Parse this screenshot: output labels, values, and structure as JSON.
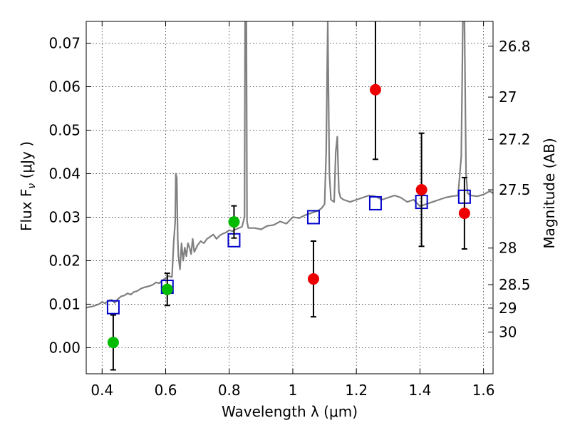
{
  "chart_data": {
    "type": "scatter",
    "xlabel": "Wavelength  λ (μm)",
    "ylabel": "Flux  F",
    "ylabel_sub": "ν",
    "ylabel_unit": "  (μJy )",
    "y2label": "Magnitude (AB)",
    "xlim": [
      0.35,
      1.63
    ],
    "ylim": [
      -0.006,
      0.075
    ],
    "xticks": [
      0.4,
      0.6,
      0.8,
      1.0,
      1.2,
      1.4,
      1.6
    ],
    "xtick_labels": [
      "0.4",
      "0.6",
      "0.8",
      "1",
      "1.2",
      "1.4",
      "1.6"
    ],
    "yticks": [
      0.0,
      0.01,
      0.02,
      0.03,
      0.04,
      0.05,
      0.06,
      0.07
    ],
    "ytick_labels": [
      "0.00",
      "0.01",
      "0.02",
      "0.03",
      "0.04",
      "0.05",
      "0.06",
      "0.07"
    ],
    "y2ticks": [
      {
        "label": "26.8",
        "flux": 0.0693
      },
      {
        "label": "27",
        "flux": 0.0576
      },
      {
        "label": "27.2",
        "flux": 0.0479
      },
      {
        "label": "27.5",
        "flux": 0.0363
      },
      {
        "label": "28",
        "flux": 0.0229
      },
      {
        "label": "28.5",
        "flux": 0.0145
      },
      {
        "label": "29",
        "flux": 0.0091
      },
      {
        "label": "30",
        "flux": 0.0036
      }
    ],
    "grid": true,
    "series": [
      {
        "kind": "spectrum",
        "color": "#808080",
        "x": [
          0.35,
          0.37,
          0.39,
          0.4,
          0.41,
          0.42,
          0.43,
          0.44,
          0.45,
          0.46,
          0.47,
          0.48,
          0.49,
          0.5,
          0.51,
          0.52,
          0.53,
          0.54,
          0.55,
          0.56,
          0.57,
          0.58,
          0.59,
          0.6,
          0.61,
          0.62,
          0.625,
          0.63,
          0.632,
          0.635,
          0.638,
          0.64,
          0.645,
          0.65,
          0.655,
          0.66,
          0.665,
          0.67,
          0.675,
          0.68,
          0.685,
          0.69,
          0.7,
          0.71,
          0.72,
          0.73,
          0.74,
          0.75,
          0.76,
          0.77,
          0.78,
          0.79,
          0.8,
          0.81,
          0.82,
          0.83,
          0.84,
          0.848,
          0.85,
          0.852,
          0.854,
          0.856,
          0.86,
          0.88,
          0.9,
          0.92,
          0.94,
          0.96,
          0.98,
          1.0,
          1.02,
          1.04,
          1.06,
          1.08,
          1.09,
          1.1,
          1.105,
          1.11,
          1.115,
          1.12,
          1.13,
          1.135,
          1.14,
          1.145,
          1.15,
          1.16,
          1.18,
          1.2,
          1.22,
          1.24,
          1.26,
          1.28,
          1.3,
          1.32,
          1.34,
          1.36,
          1.38,
          1.4,
          1.42,
          1.44,
          1.46,
          1.48,
          1.5,
          1.52,
          1.53,
          1.535,
          1.54,
          1.545,
          1.55,
          1.56,
          1.58,
          1.6,
          1.62,
          1.63
        ],
        "y": [
          0.0092,
          0.0095,
          0.01,
          0.0105,
          0.0102,
          0.0108,
          0.011,
          0.0103,
          0.0112,
          0.0118,
          0.012,
          0.0125,
          0.0122,
          0.0128,
          0.013,
          0.0135,
          0.0138,
          0.014,
          0.0142,
          0.0145,
          0.015,
          0.0148,
          0.0155,
          0.016,
          0.0165,
          0.0162,
          0.024,
          0.029,
          0.04,
          0.039,
          0.025,
          0.021,
          0.018,
          0.024,
          0.02,
          0.023,
          0.021,
          0.024,
          0.023,
          0.0215,
          0.025,
          0.022,
          0.0235,
          0.0245,
          0.024,
          0.025,
          0.0255,
          0.026,
          0.025,
          0.0258,
          0.0262,
          0.0265,
          0.027,
          0.0268,
          0.0272,
          0.0275,
          0.0278,
          0.03,
          0.075,
          0.075,
          0.075,
          0.029,
          0.0275,
          0.0275,
          0.0272,
          0.028,
          0.0282,
          0.029,
          0.0285,
          0.03,
          0.0298,
          0.0305,
          0.031,
          0.0315,
          0.032,
          0.033,
          0.045,
          0.075,
          0.04,
          0.034,
          0.0335,
          0.045,
          0.0485,
          0.036,
          0.0345,
          0.034,
          0.0335,
          0.034,
          0.0345,
          0.035,
          0.0348,
          0.034,
          0.0345,
          0.035,
          0.0345,
          0.0335,
          0.034,
          0.0325,
          0.033,
          0.0335,
          0.034,
          0.0345,
          0.0348,
          0.035,
          0.044,
          0.075,
          0.075,
          0.04,
          0.0355,
          0.035,
          0.0348,
          0.0352,
          0.036,
          0.0355
        ]
      },
      {
        "kind": "model-photometry",
        "marker": "open-square",
        "color": "#0000cc",
        "x": [
          0.435,
          0.605,
          0.815,
          1.065,
          1.26,
          1.405,
          1.54
        ],
        "y": [
          0.0093,
          0.014,
          0.0247,
          0.03,
          0.0332,
          0.0335,
          0.0347
        ]
      },
      {
        "kind": "detection",
        "marker": "circle",
        "color": "#00bb00",
        "x": [
          0.435,
          0.605,
          0.815
        ],
        "y": [
          0.0012,
          0.0134,
          0.0289
        ],
        "yerr": [
          0.0063,
          0.0037,
          0.0037
        ]
      },
      {
        "kind": "non-detection",
        "marker": "circle",
        "color": "#ee0000",
        "x": [
          1.065,
          1.26,
          1.405,
          1.54
        ],
        "y": [
          0.0158,
          0.0593,
          0.0363,
          0.0309
        ],
        "yerr": [
          0.0087,
          0.016,
          0.013,
          0.0082
        ]
      }
    ]
  }
}
